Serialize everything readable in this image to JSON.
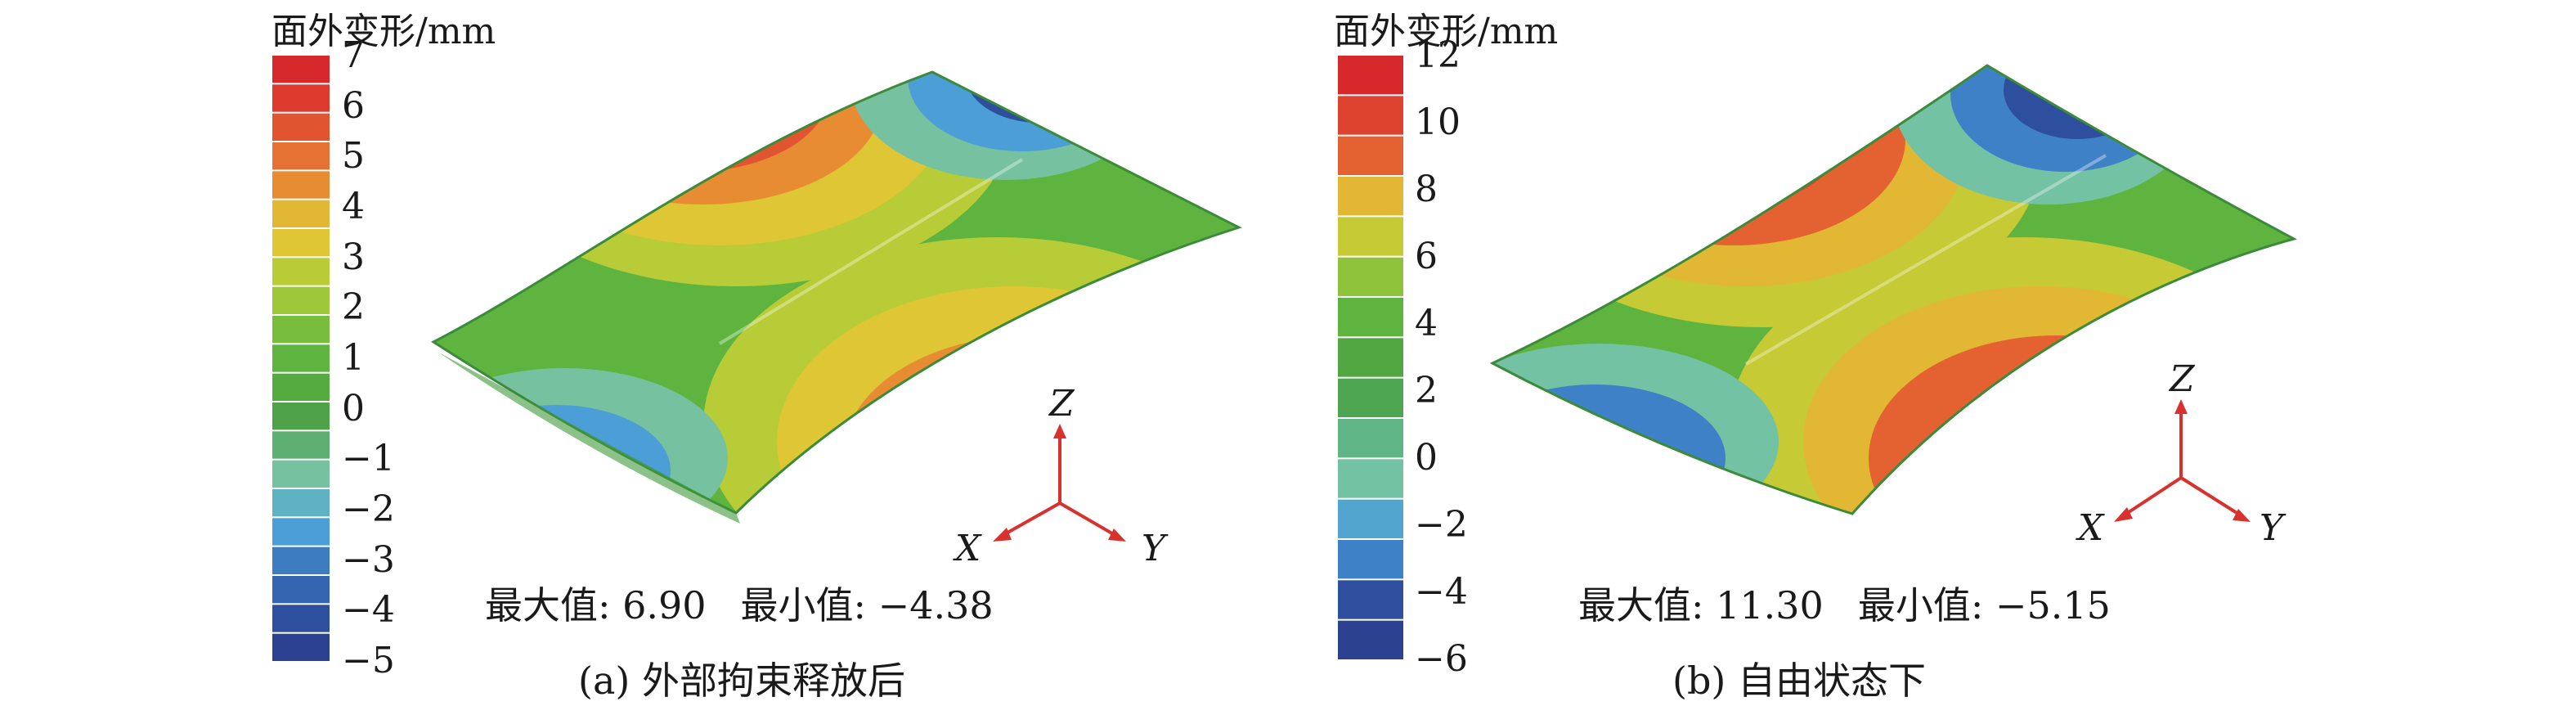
{
  "panels": [
    {
      "legend_title": "面外变形/mm",
      "ticks": [
        "7",
        "6",
        "5",
        "4",
        "3",
        "2",
        "1",
        "0",
        "−1",
        "−2",
        "−3",
        "−4",
        "−5"
      ],
      "colors": [
        "#d7282c",
        "#dd3a2e",
        "#e15430",
        "#e57132",
        "#e88c33",
        "#e2b733",
        "#dec634",
        "#b7cc37",
        "#9fc73a",
        "#78bd3c",
        "#5fb43f",
        "#55aa40",
        "#4fa14a",
        "#5fae72",
        "#76c2a0",
        "#5fb2c2",
        "#4c9ed6",
        "#3e7cc2",
        "#3564b0",
        "#2e4f9d",
        "#2c4190"
      ],
      "max_label": "最大值: 6.90",
      "min_label": "最小值: −4.38",
      "caption": "(a) 外部拘束释放后",
      "axes": {
        "z": "Z",
        "x": "X",
        "y": "Y"
      }
    },
    {
      "legend_title": "面外变形/mm",
      "ticks": [
        "12",
        "10",
        "8",
        "6",
        "4",
        "2",
        "0",
        "−2",
        "−4",
        "−6"
      ],
      "colors": [
        "#d7282c",
        "#de4330",
        "#e46232",
        "#e2b733",
        "#c6ca35",
        "#8fc33b",
        "#5fb43f",
        "#52a743",
        "#4ea552",
        "#5fb585",
        "#74c2a4",
        "#52a5cf",
        "#3f81c6",
        "#2e4f9d",
        "#2c4190"
      ],
      "max_label": "最大值: 11.30",
      "min_label": "最小值: −5.15",
      "caption": "(b) 自由状态下",
      "axes": {
        "z": "Z",
        "x": "X",
        "y": "Y"
      }
    }
  ]
}
